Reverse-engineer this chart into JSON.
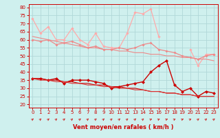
{
  "x": [
    0,
    1,
    2,
    3,
    4,
    5,
    6,
    7,
    8,
    9,
    10,
    11,
    12,
    13,
    14,
    15,
    16,
    17,
    18,
    19,
    20,
    21,
    22,
    23
  ],
  "rafales_max": [
    73,
    64,
    68,
    60,
    60,
    67,
    60,
    57,
    64,
    56,
    55,
    55,
    64,
    77,
    76,
    79,
    62,
    null,
    null,
    null,
    54,
    44,
    51,
    51
  ],
  "rafales_mid": [
    60,
    59,
    60,
    57,
    58,
    59,
    57,
    55,
    56,
    54,
    54,
    55,
    54,
    55,
    57,
    58,
    54,
    53,
    52,
    50,
    49,
    48,
    50,
    51
  ],
  "rafales_line": [
    62,
    61,
    60,
    59,
    58,
    57,
    56,
    55,
    55,
    54,
    54,
    53,
    53,
    52,
    52,
    51,
    51,
    50,
    50,
    49,
    49,
    48,
    48,
    47
  ],
  "vent_moy_markers": [
    36,
    36,
    35,
    36,
    33,
    35,
    35,
    35,
    34,
    33,
    30,
    31,
    32,
    33,
    34,
    40,
    44,
    47,
    32,
    28,
    30,
    25,
    28,
    27
  ],
  "vent_moy_line1": [
    36,
    36,
    35,
    35,
    34,
    34,
    33,
    33,
    32,
    32,
    31,
    31,
    30,
    30,
    29,
    28,
    28,
    27,
    27,
    26,
    26,
    25,
    25,
    25
  ],
  "vent_moy_line2": [
    36,
    35,
    35,
    34,
    34,
    33,
    33,
    32,
    32,
    31,
    31,
    30,
    30,
    29,
    29,
    28,
    28,
    27,
    27,
    26,
    26,
    25,
    25,
    25
  ],
  "bg_color": "#cff0ee",
  "grid_color": "#b0d8d8",
  "line_color_dark_red": "#cc0000",
  "line_color_mid_red": "#dd3333",
  "line_color_pink": "#ee8888",
  "line_color_light_pink": "#ffaaaa",
  "arrow_color": "#cc2222",
  "xlabel": "Vent moyen/en rafales ( km/h )",
  "xlabel_color": "#cc0000",
  "tick_color": "#cc0000",
  "ylim": [
    18,
    82
  ],
  "yticks": [
    20,
    25,
    30,
    35,
    40,
    45,
    50,
    55,
    60,
    65,
    70,
    75,
    80
  ],
  "xticks": [
    0,
    1,
    2,
    3,
    4,
    5,
    6,
    7,
    8,
    9,
    10,
    11,
    12,
    13,
    14,
    15,
    16,
    17,
    18,
    19,
    20,
    21,
    22,
    23
  ],
  "arrow_angles_deg": [
    45,
    45,
    45,
    45,
    45,
    45,
    45,
    45,
    45,
    45,
    45,
    45,
    45,
    45,
    45,
    30,
    30,
    30,
    30,
    30,
    30,
    45,
    45,
    45
  ]
}
